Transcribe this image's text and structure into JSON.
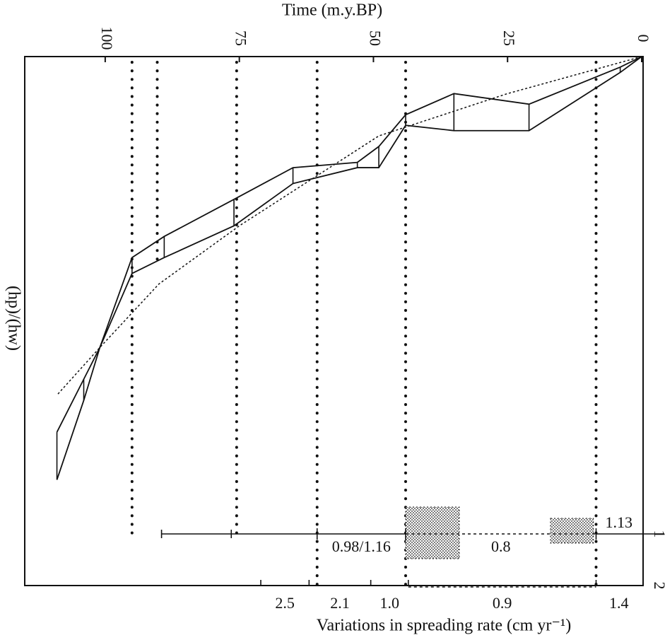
{
  "chart_data": {
    "type": "line",
    "title": "Time (m.y.BP)",
    "ylabel": "(hp)/(hw)",
    "xlabel": "Variations in spreading rate (cm yr⁻¹)",
    "xlim": [
      0,
      115
    ],
    "xticks": [
      100,
      75,
      50,
      25,
      0
    ],
    "ylim": [
      0,
      1
    ],
    "x": [
      0,
      4,
      21,
      35,
      44,
      49,
      53,
      65,
      76,
      89,
      95,
      101,
      104,
      109
    ],
    "series": [
      {
        "color": "#111111",
        "values": [
          1.0,
          0.98,
          0.91,
          0.93,
          0.89,
          0.83,
          0.8,
          0.79,
          0.73,
          0.66,
          0.62,
          0.45,
          0.39,
          0.29
        ]
      },
      {
        "color": "#111111",
        "values": [
          1.0,
          0.97,
          0.86,
          0.86,
          0.87,
          0.79,
          0.79,
          0.76,
          0.68,
          0.62,
          0.59,
          0.45,
          0.35,
          0.2
        ]
      }
    ],
    "trend": {
      "x": [
        0,
        25,
        49,
        75,
        90,
        101,
        109
      ],
      "values": [
        1.0,
        0.93,
        0.85,
        0.68,
        0.57,
        0.45,
        0.36
      ]
    },
    "reference_lines": [
      95,
      90.3,
      75.5,
      60.5,
      44,
      8.5
    ],
    "stippled": [
      [
        44,
        34
      ],
      [
        17,
        9
      ]
    ],
    "rows": [
      {
        "name": "1",
        "extra_ticks": [
          89.5,
          76.5
        ],
        "boundaries": [
          60.5,
          44,
          8.5,
          0
        ],
        "labels": [
          "0.98/1.16",
          "0.8",
          "1.13"
        ]
      },
      {
        "name": "2",
        "extra_ticks": [],
        "boundaries": [
          71,
          62,
          50.5,
          43.5,
          8.5,
          0
        ],
        "labels": [
          "2.5",
          "2.1",
          "1.0",
          "0.9",
          "1.4"
        ]
      }
    ]
  }
}
